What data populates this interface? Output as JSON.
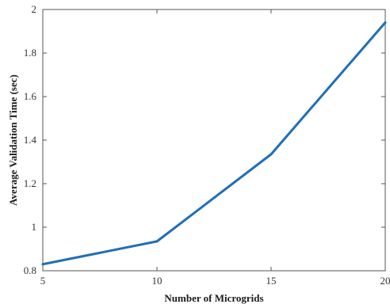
{
  "chart_data": {
    "type": "line",
    "title": "",
    "xlabel": "Number of Microgrids",
    "ylabel": "Average Validation Time (sec)",
    "xlim": [
      5,
      20
    ],
    "ylim": [
      0.8,
      2.0
    ],
    "xticks": [
      5,
      10,
      15,
      20
    ],
    "yticks": [
      0.8,
      1.0,
      1.2,
      1.4,
      1.6,
      1.8,
      2.0
    ],
    "xtick_labels": [
      "5",
      "10",
      "15",
      "20"
    ],
    "ytick_labels": [
      "0.8",
      "1",
      "1.2",
      "1.4",
      "1.6",
      "1.8",
      "2"
    ],
    "grid": false,
    "series": [
      {
        "color": "#1f6fb8",
        "x": [
          5,
          10,
          15,
          20
        ],
        "y": [
          0.83,
          0.935,
          1.335,
          1.94
        ]
      }
    ]
  }
}
